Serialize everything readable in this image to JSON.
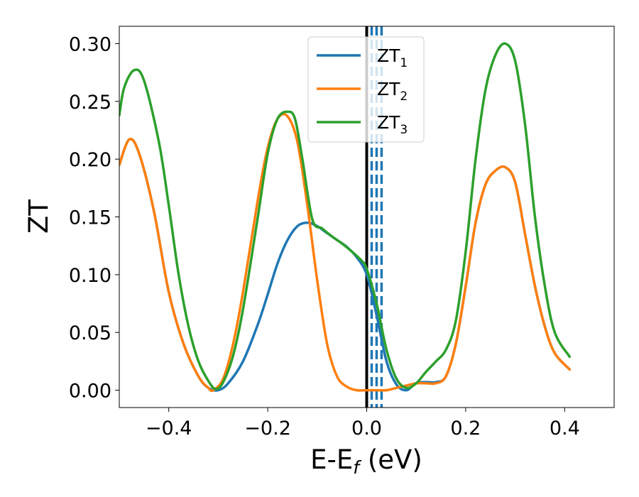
{
  "chart_data": {
    "type": "line",
    "xlabel": "E-E",
    "xlabel_sub": "f",
    "xlabel_unit": " (eV)",
    "ylabel": "ZT",
    "xlim": [
      -0.5,
      0.5
    ],
    "ylim": [
      -0.015,
      0.315
    ],
    "xticks": [
      -0.4,
      -0.2,
      0.0,
      0.2,
      0.4
    ],
    "xtick_labels": [
      "−0.4",
      "−0.2",
      "0.0",
      "0.2",
      "0.4"
    ],
    "yticks": [
      0.0,
      0.05,
      0.1,
      0.15,
      0.2,
      0.25,
      0.3
    ],
    "ytick_labels": [
      "0.00",
      "0.05",
      "0.10",
      "0.15",
      "0.20",
      "0.25",
      "0.30"
    ],
    "legend_position": "top-center",
    "grid": false,
    "vlines": [
      {
        "x": 0.0,
        "color": "#000000",
        "style": "solid"
      },
      {
        "x": 0.01,
        "color": "#1f77b4",
        "style": "dashed"
      },
      {
        "x": 0.02,
        "color": "#1f77b4",
        "style": "dashed"
      },
      {
        "x": 0.03,
        "color": "#1f77b4",
        "style": "dashed"
      }
    ],
    "series": [
      {
        "name": "ZT",
        "sub": "1",
        "color": "#1f77b4",
        "x": [
          -0.5,
          -0.48,
          -0.46,
          -0.43,
          -0.4,
          -0.37,
          -0.34,
          -0.32,
          -0.3,
          -0.28,
          -0.25,
          -0.22,
          -0.2,
          -0.18,
          -0.16,
          -0.14,
          -0.12,
          -0.1,
          -0.08,
          -0.06,
          -0.04,
          -0.02,
          0.0,
          0.02,
          0.04,
          0.06,
          0.08,
          0.1,
          0.12,
          0.14,
          0.16,
          0.18,
          0.2,
          0.22,
          0.24,
          0.26,
          0.28,
          0.3,
          0.32,
          0.34,
          0.36,
          0.38,
          0.41
        ],
        "y": [
          0.195,
          0.217,
          0.205,
          0.155,
          0.085,
          0.04,
          0.012,
          0.002,
          0.0,
          0.006,
          0.025,
          0.057,
          0.083,
          0.11,
          0.13,
          0.142,
          0.145,
          0.142,
          0.136,
          0.13,
          0.124,
          0.115,
          0.1,
          0.065,
          0.025,
          0.005,
          0.0,
          0.006,
          0.007,
          0.007,
          0.012,
          0.04,
          0.09,
          0.145,
          0.178,
          0.19,
          0.193,
          0.18,
          0.135,
          0.09,
          0.055,
          0.032,
          0.018
        ]
      },
      {
        "name": "ZT",
        "sub": "2",
        "color": "#ff7f0e",
        "x": [
          -0.5,
          -0.48,
          -0.46,
          -0.43,
          -0.4,
          -0.37,
          -0.34,
          -0.32,
          -0.31,
          -0.29,
          -0.27,
          -0.25,
          -0.22,
          -0.2,
          -0.18,
          -0.16,
          -0.14,
          -0.12,
          -0.1,
          -0.08,
          -0.06,
          -0.04,
          -0.02,
          0.0,
          0.02,
          0.04,
          0.06,
          0.08,
          0.1,
          0.12,
          0.14,
          0.16,
          0.18,
          0.2,
          0.22,
          0.24,
          0.26,
          0.28,
          0.3,
          0.32,
          0.34,
          0.36,
          0.38,
          0.41
        ],
        "y": [
          0.195,
          0.217,
          0.205,
          0.155,
          0.085,
          0.04,
          0.012,
          0.002,
          0.0,
          0.01,
          0.04,
          0.085,
          0.165,
          0.21,
          0.235,
          0.237,
          0.215,
          0.16,
          0.095,
          0.04,
          0.012,
          0.003,
          0.0,
          0.0,
          0.0,
          0.0,
          0.002,
          0.004,
          0.006,
          0.006,
          0.006,
          0.012,
          0.04,
          0.09,
          0.145,
          0.178,
          0.19,
          0.193,
          0.18,
          0.135,
          0.09,
          0.055,
          0.032,
          0.018
        ]
      },
      {
        "name": "ZT",
        "sub": "3",
        "color": "#2ca02c",
        "x": [
          -0.5,
          -0.49,
          -0.47,
          -0.45,
          -0.42,
          -0.4,
          -0.38,
          -0.36,
          -0.34,
          -0.32,
          -0.305,
          -0.29,
          -0.27,
          -0.25,
          -0.22,
          -0.2,
          -0.18,
          -0.16,
          -0.145,
          -0.13,
          -0.11,
          -0.09,
          -0.07,
          -0.05,
          -0.03,
          -0.01,
          0.0,
          0.02,
          0.04,
          0.06,
          0.08,
          0.1,
          0.12,
          0.14,
          0.16,
          0.18,
          0.2,
          0.22,
          0.24,
          0.26,
          0.28,
          0.3,
          0.32,
          0.34,
          0.36,
          0.38,
          0.41
        ],
        "y": [
          0.238,
          0.262,
          0.277,
          0.268,
          0.215,
          0.16,
          0.1,
          0.055,
          0.025,
          0.008,
          0.001,
          0.007,
          0.03,
          0.07,
          0.15,
          0.205,
          0.235,
          0.241,
          0.235,
          0.2,
          0.148,
          0.14,
          0.133,
          0.127,
          0.12,
          0.112,
          0.105,
          0.075,
          0.035,
          0.01,
          0.002,
          0.006,
          0.016,
          0.025,
          0.035,
          0.06,
          0.12,
          0.2,
          0.26,
          0.29,
          0.3,
          0.285,
          0.23,
          0.15,
          0.09,
          0.05,
          0.029
        ]
      }
    ]
  }
}
